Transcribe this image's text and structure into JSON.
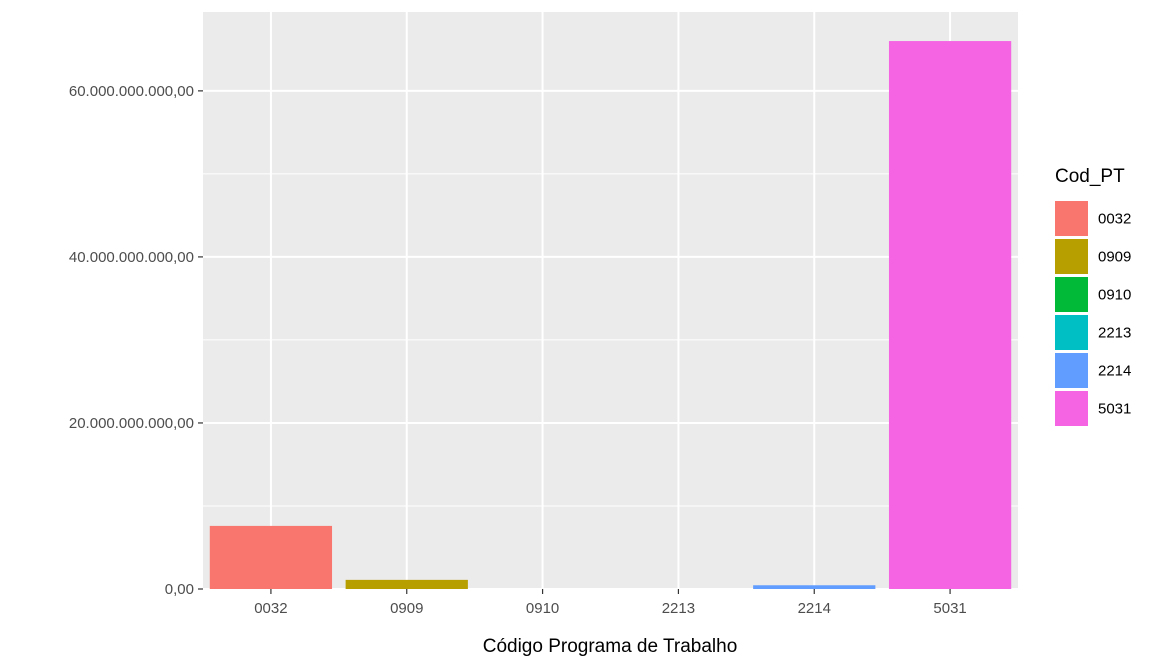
{
  "chart_data": {
    "type": "bar",
    "categories": [
      "0032",
      "0909",
      "0910",
      "2213",
      "2214",
      "5031"
    ],
    "values": [
      7600000000,
      1100000000,
      0,
      0,
      450000000,
      66000000000
    ],
    "colors": [
      "#F8766D",
      "#B79F00",
      "#00BA38",
      "#00BFC4",
      "#619CFF",
      "#F564E3"
    ],
    "title": "",
    "xlabel": "Código Programa de Trabalho",
    "ylabel": "",
    "ylim": [
      0,
      69500000000
    ],
    "yticks": [
      0,
      20000000000,
      40000000000,
      60000000000
    ],
    "ytick_labels": [
      "0,00",
      "20.000.000.000,00",
      "40.000.000.000,00",
      "60.000.000.000,00"
    ],
    "grid": true,
    "panel_background": "#EBEBEB",
    "legend": {
      "title": "Cod_PT",
      "position": "right",
      "entries": [
        "0032",
        "0909",
        "0910",
        "2213",
        "2214",
        "5031"
      ]
    }
  }
}
